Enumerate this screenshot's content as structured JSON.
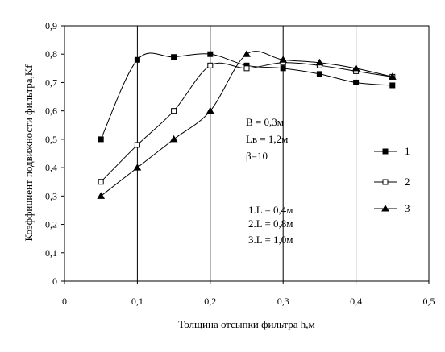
{
  "chart_data": {
    "type": "line",
    "title": "",
    "xlabel": "Толщина отсыпки фильтра h,м",
    "ylabel": "Коэффициент подвижности фильтра,Kf",
    "xlim": [
      0,
      0.5
    ],
    "ylim": [
      0,
      0.9
    ],
    "xticks": [
      0,
      0.1,
      0.2,
      0.3,
      0.4,
      0.5
    ],
    "xtick_labels": [
      "0",
      "0,1",
      "0,2",
      "0,3",
      "0,4",
      "0,5"
    ],
    "yticks": [
      0,
      0.1,
      0.2,
      0.3,
      0.4,
      0.5,
      0.6,
      0.7,
      0.8,
      0.9
    ],
    "ytick_labels": [
      "0",
      "0,1",
      "0,2",
      "0,3",
      "0,4",
      "0,5",
      "0,6",
      "0,7",
      "0,8",
      "0,9"
    ],
    "grid": "vertical",
    "legend": "right",
    "series": [
      {
        "name": "1",
        "marker": "filled-square",
        "x": [
          0.05,
          0.1,
          0.15,
          0.2,
          0.25,
          0.3,
          0.35,
          0.4,
          0.45
        ],
        "y": [
          0.5,
          0.78,
          0.79,
          0.8,
          0.76,
          0.75,
          0.73,
          0.7,
          0.69
        ]
      },
      {
        "name": "2",
        "marker": "open-square",
        "x": [
          0.05,
          0.1,
          0.15,
          0.2,
          0.25,
          0.3,
          0.35,
          0.4,
          0.45
        ],
        "y": [
          0.35,
          0.48,
          0.6,
          0.76,
          0.75,
          0.77,
          0.76,
          0.74,
          0.72
        ]
      },
      {
        "name": "3",
        "marker": "filled-triangle",
        "x": [
          0.05,
          0.1,
          0.15,
          0.2,
          0.25,
          0.3,
          0.35,
          0.4,
          0.45
        ],
        "y": [
          0.3,
          0.4,
          0.5,
          0.6,
          0.8,
          0.78,
          0.77,
          0.75,
          0.72
        ]
      }
    ],
    "annotations": {
      "params": [
        "B = 0,3м",
        "Lв = 1,2м",
        "β=10"
      ],
      "lengths": [
        "1.L = 0,4м",
        "2.L = 0,8м",
        "3.L = 1,0м"
      ]
    }
  }
}
